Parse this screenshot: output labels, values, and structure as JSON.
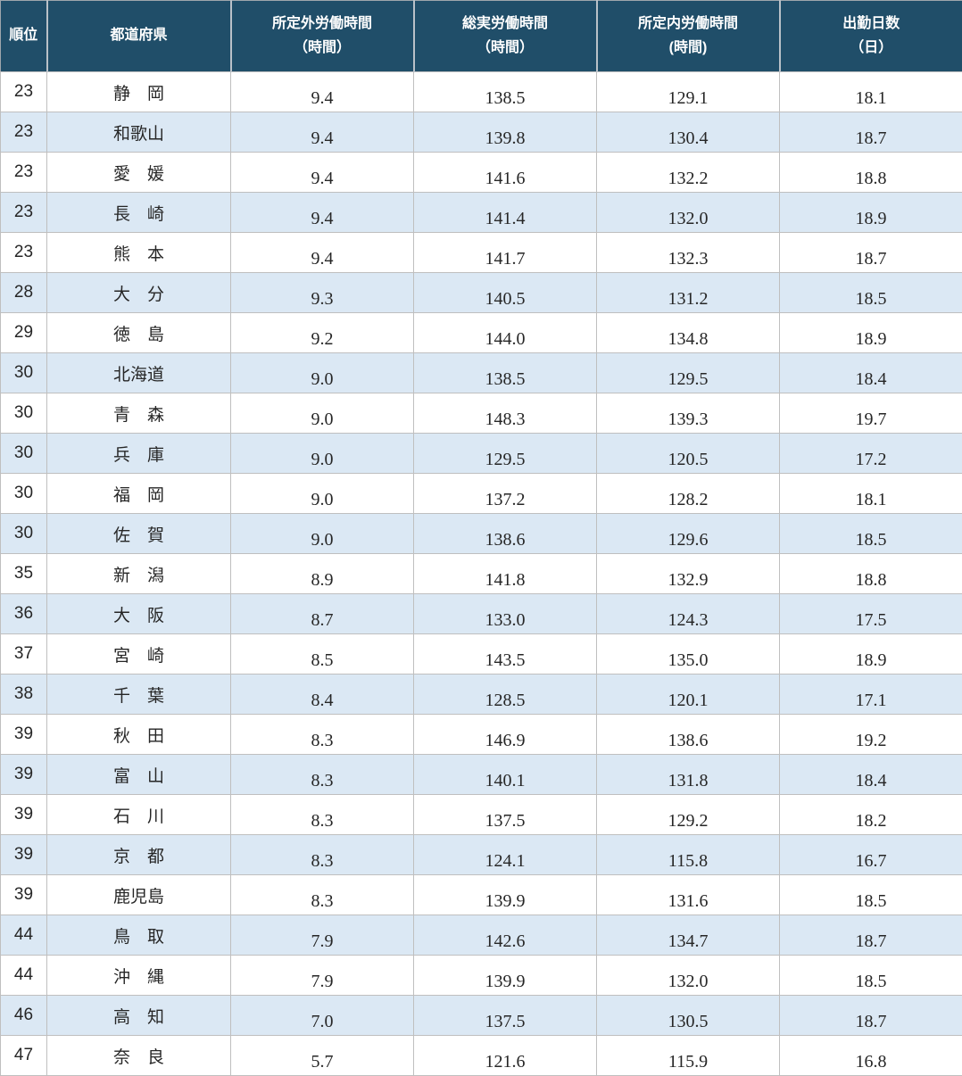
{
  "chart_data": {
    "type": "table",
    "columns": [
      {
        "label": "順位",
        "sublabel": ""
      },
      {
        "label": "都道府県",
        "sublabel": ""
      },
      {
        "label": "所定外労働時間",
        "sublabel": "（時間）"
      },
      {
        "label": "総実労働時間",
        "sublabel": "（時間）"
      },
      {
        "label": "所定内労働時間",
        "sublabel": "(時間)"
      },
      {
        "label": "出勤日数",
        "sublabel": "（日）"
      }
    ],
    "rows": [
      [
        "23",
        "静　岡",
        "9.4",
        "138.5",
        "129.1",
        "18.1"
      ],
      [
        "23",
        "和歌山",
        "9.4",
        "139.8",
        "130.4",
        "18.7"
      ],
      [
        "23",
        "愛　媛",
        "9.4",
        "141.6",
        "132.2",
        "18.8"
      ],
      [
        "23",
        "長　崎",
        "9.4",
        "141.4",
        "132.0",
        "18.9"
      ],
      [
        "23",
        "熊　本",
        "9.4",
        "141.7",
        "132.3",
        "18.7"
      ],
      [
        "28",
        "大　分",
        "9.3",
        "140.5",
        "131.2",
        "18.5"
      ],
      [
        "29",
        "徳　島",
        "9.2",
        "144.0",
        "134.8",
        "18.9"
      ],
      [
        "30",
        "北海道",
        "9.0",
        "138.5",
        "129.5",
        "18.4"
      ],
      [
        "30",
        "青　森",
        "9.0",
        "148.3",
        "139.3",
        "19.7"
      ],
      [
        "30",
        "兵　庫",
        "9.0",
        "129.5",
        "120.5",
        "17.2"
      ],
      [
        "30",
        "福　岡",
        "9.0",
        "137.2",
        "128.2",
        "18.1"
      ],
      [
        "30",
        "佐　賀",
        "9.0",
        "138.6",
        "129.6",
        "18.5"
      ],
      [
        "35",
        "新　潟",
        "8.9",
        "141.8",
        "132.9",
        "18.8"
      ],
      [
        "36",
        "大　阪",
        "8.7",
        "133.0",
        "124.3",
        "17.5"
      ],
      [
        "37",
        "宮　崎",
        "8.5",
        "143.5",
        "135.0",
        "18.9"
      ],
      [
        "38",
        "千　葉",
        "8.4",
        "128.5",
        "120.1",
        "17.1"
      ],
      [
        "39",
        "秋　田",
        "8.3",
        "146.9",
        "138.6",
        "19.2"
      ],
      [
        "39",
        "富　山",
        "8.3",
        "140.1",
        "131.8",
        "18.4"
      ],
      [
        "39",
        "石　川",
        "8.3",
        "137.5",
        "129.2",
        "18.2"
      ],
      [
        "39",
        "京　都",
        "8.3",
        "124.1",
        "115.8",
        "16.7"
      ],
      [
        "39",
        "鹿児島",
        "8.3",
        "139.9",
        "131.6",
        "18.5"
      ],
      [
        "44",
        "鳥　取",
        "7.9",
        "142.6",
        "134.7",
        "18.7"
      ],
      [
        "44",
        "沖　縄",
        "7.9",
        "139.9",
        "132.0",
        "18.5"
      ],
      [
        "46",
        "高　知",
        "7.0",
        "137.5",
        "130.5",
        "18.7"
      ],
      [
        "47",
        "奈　良",
        "5.7",
        "121.6",
        "115.9",
        "16.8"
      ]
    ]
  },
  "colors": {
    "header_bg": "#204E69",
    "header_text": "#FFFFFF",
    "row_alt": "#DBE8F4",
    "row_white": "#FFFFFF",
    "border": "#BFBFBF",
    "text": "#262626"
  }
}
